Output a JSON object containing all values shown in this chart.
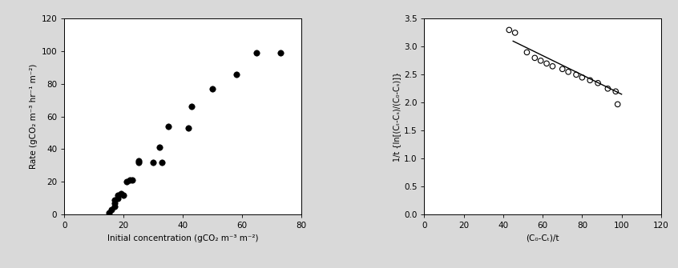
{
  "plot1": {
    "x": [
      15,
      16,
      17,
      17,
      17,
      18,
      18,
      19,
      20,
      21,
      22,
      23,
      25,
      25,
      30,
      32,
      33,
      35,
      42,
      43,
      50,
      58,
      65,
      73
    ],
    "y": [
      1,
      3,
      5,
      7,
      9,
      10,
      12,
      13,
      12,
      20,
      21,
      21,
      32,
      33,
      32,
      41,
      32,
      54,
      53,
      66,
      77,
      86,
      99,
      99
    ],
    "xlabel": "Initial concentration (gCO₂ m⁻³ m⁻²)",
    "ylabel": "Rate (gCO₂ m⁻³ hr⁻¹ m⁻²)",
    "xlim": [
      0,
      80
    ],
    "ylim": [
      0,
      120
    ],
    "xticks": [
      0,
      20,
      40,
      60,
      80
    ],
    "yticks": [
      0,
      20,
      40,
      60,
      80,
      100,
      120
    ]
  },
  "plot2": {
    "x": [
      43,
      46,
      52,
      56,
      59,
      62,
      65,
      70,
      73,
      77,
      80,
      84,
      88,
      93,
      97,
      98
    ],
    "y": [
      3.3,
      3.25,
      2.9,
      2.8,
      2.75,
      2.7,
      2.65,
      2.6,
      2.55,
      2.5,
      2.45,
      2.4,
      2.35,
      2.25,
      2.2,
      1.97
    ],
    "line_x": [
      45,
      100
    ],
    "line_y": [
      3.1,
      2.15
    ],
    "xlabel": "(C₀-Cₜ)/t",
    "ylabel": "1/t {ln[(Cₜ-Cₛ)/(C₀-Cₛ)]}",
    "xlim": [
      0,
      120
    ],
    "ylim": [
      0,
      3.5
    ],
    "xticks": [
      0,
      20,
      40,
      60,
      80,
      100,
      120
    ],
    "yticks": [
      0,
      0.5,
      1.0,
      1.5,
      2.0,
      2.5,
      3.0,
      3.5
    ]
  },
  "bg_color": "#d9d9d9",
  "plot_bg": "#ffffff"
}
